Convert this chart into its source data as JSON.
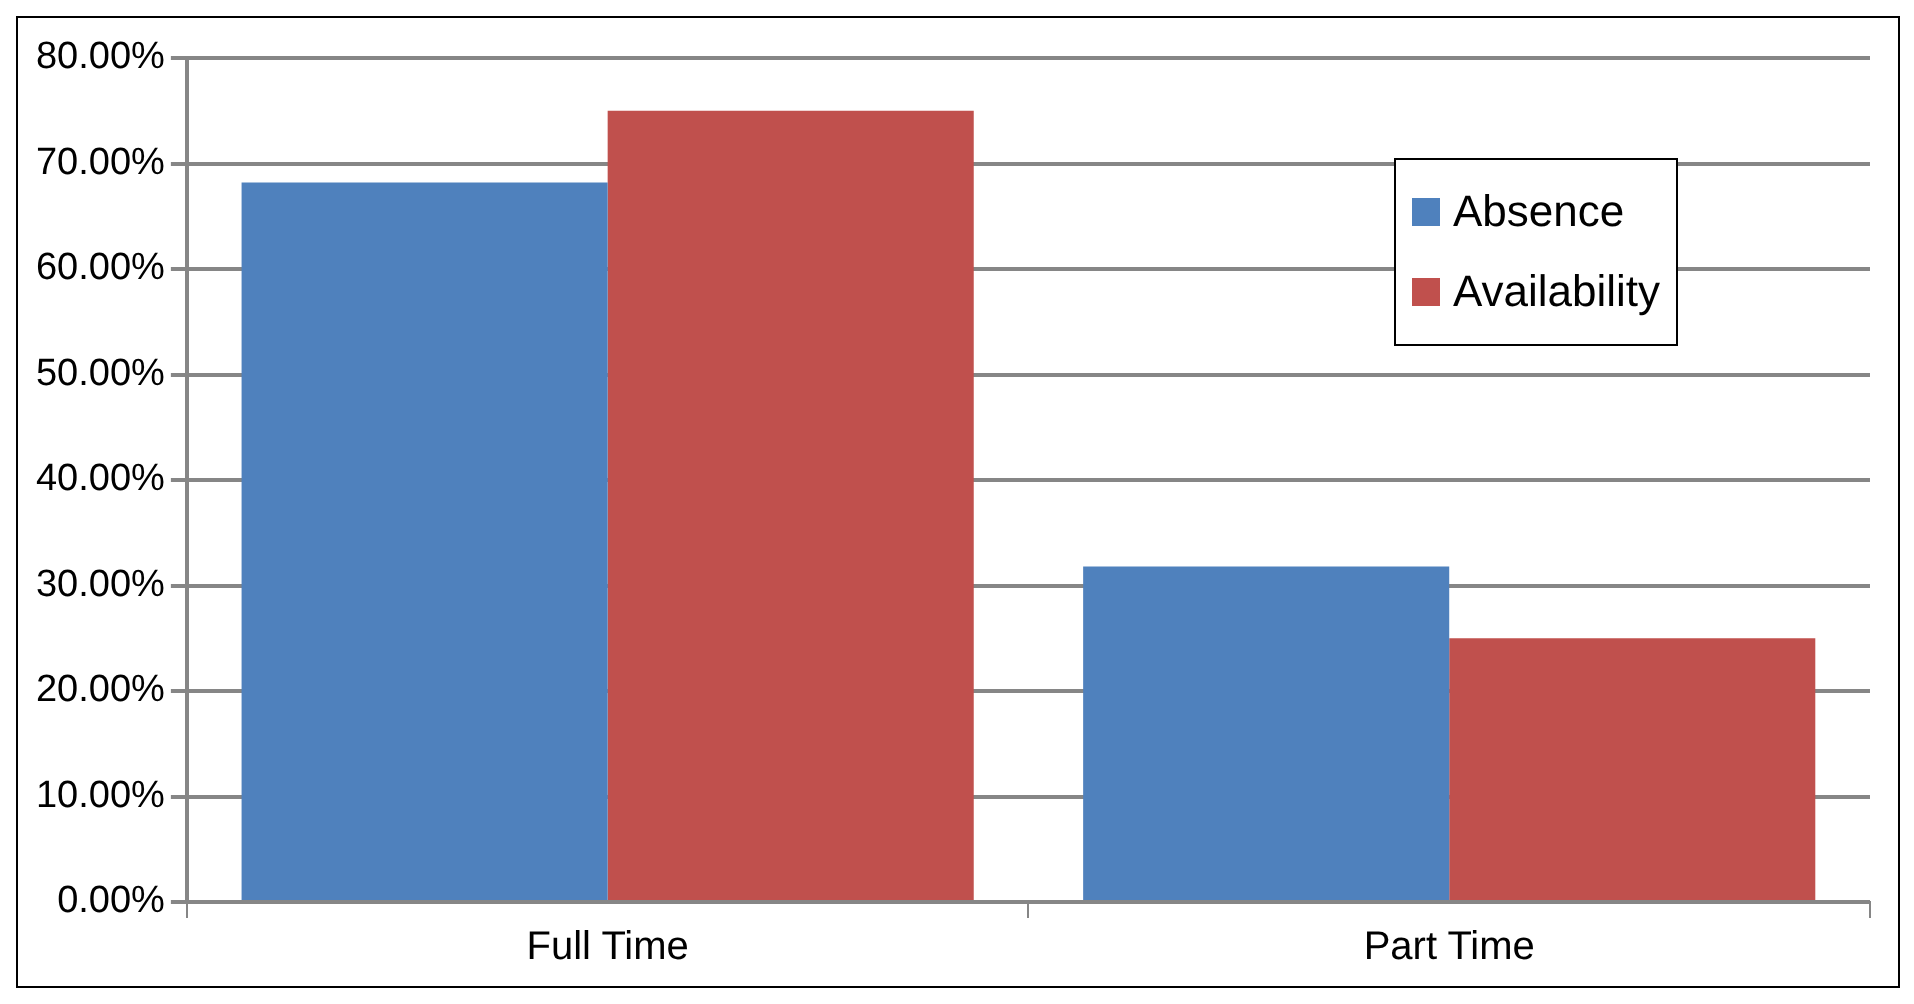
{
  "chart_data": {
    "type": "bar",
    "categories": [
      "Full Time",
      "Part Time"
    ],
    "series": [
      {
        "name": "Absence",
        "color": "#4f81bd",
        "values": [
          68.2,
          31.8
        ]
      },
      {
        "name": "Availability",
        "color": "#c0504d",
        "values": [
          75,
          25
        ]
      }
    ],
    "ylim": [
      0,
      80
    ],
    "yticks": [
      {
        "value": 0,
        "label": "0.00%"
      },
      {
        "value": 10,
        "label": "10.00%"
      },
      {
        "value": 20,
        "label": "20.00%"
      },
      {
        "value": 30,
        "label": "30.00%"
      },
      {
        "value": 40,
        "label": "40.00%"
      },
      {
        "value": 50,
        "label": "50.00%"
      },
      {
        "value": 60,
        "label": "60.00%"
      },
      {
        "value": 70,
        "label": "70.00%"
      },
      {
        "value": 80,
        "label": "80.00%"
      }
    ],
    "grid": "y",
    "legend": "top right"
  }
}
